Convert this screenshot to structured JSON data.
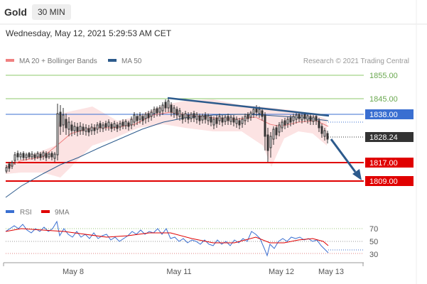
{
  "header": {
    "title": "Gold",
    "interval": "30 MIN"
  },
  "timestamp": "Wednesday, May 12, 2021 5:29:53 AM CET",
  "credit": "Research © 2021 Trading Central",
  "chart_data": {
    "type": "line",
    "main_panel": {
      "legend": [
        {
          "name": "MA 20 + Bollinger Bands",
          "color": "#f08080"
        },
        {
          "name": "MA 50",
          "color": "#2c5a8c"
        }
      ],
      "price_labels": [
        "1855.00",
        "1845.00",
        "1838.00",
        "1828.24",
        "1817.00",
        "1809.00"
      ],
      "levels": [
        {
          "value": 1855.0,
          "label": "1855.00",
          "kind": "resistance",
          "color": "#8dc96b"
        },
        {
          "value": 1845.0,
          "label": "1845.00",
          "kind": "resistance",
          "color": "#8dc96b"
        },
        {
          "value": 1838.0,
          "label": "1838.00",
          "kind": "pivot",
          "color": "#3a6fd1"
        },
        {
          "value": 1828.24,
          "label": "1828.24",
          "kind": "last-price",
          "color": "#333333"
        },
        {
          "value": 1817.0,
          "label": "1817.00",
          "kind": "support",
          "color": "#e00000"
        },
        {
          "value": 1809.0,
          "label": "1809.00",
          "kind": "support",
          "color": "#e00000"
        }
      ],
      "approx_close_path": [
        1814,
        1816,
        1821,
        1820,
        1819,
        1819,
        1833,
        1832,
        1831,
        1833,
        1832,
        1835,
        1836,
        1837,
        1839,
        1842,
        1843,
        1836,
        1836,
        1835,
        1835,
        1836,
        1835,
        1835,
        1840,
        1837,
        1836,
        1836,
        1837,
        1837,
        1828
      ]
    },
    "rsi_panel": {
      "legend": [
        {
          "name": "RSI",
          "color": "#3a6fd1"
        },
        {
          "name": "9MA",
          "color": "#e00000"
        }
      ],
      "levels": [
        70,
        50,
        30
      ],
      "tick_labels": [
        "70",
        "50",
        "30"
      ],
      "approx_rsi": [
        63,
        70,
        61,
        58,
        64,
        60,
        55,
        60,
        62,
        66,
        60,
        55,
        52,
        50,
        53,
        58,
        55,
        60,
        47,
        35,
        58,
        56,
        60,
        55,
        32
      ],
      "approx_ma9": [
        60,
        62,
        63,
        61,
        60,
        61,
        60,
        59,
        61,
        62,
        60,
        58,
        55,
        53,
        52,
        54,
        55,
        56,
        54,
        49,
        52,
        55,
        57,
        56,
        46
      ]
    },
    "x_tick_labels": [
      "May 8",
      "May 11",
      "May 12",
      "May 13"
    ]
  }
}
